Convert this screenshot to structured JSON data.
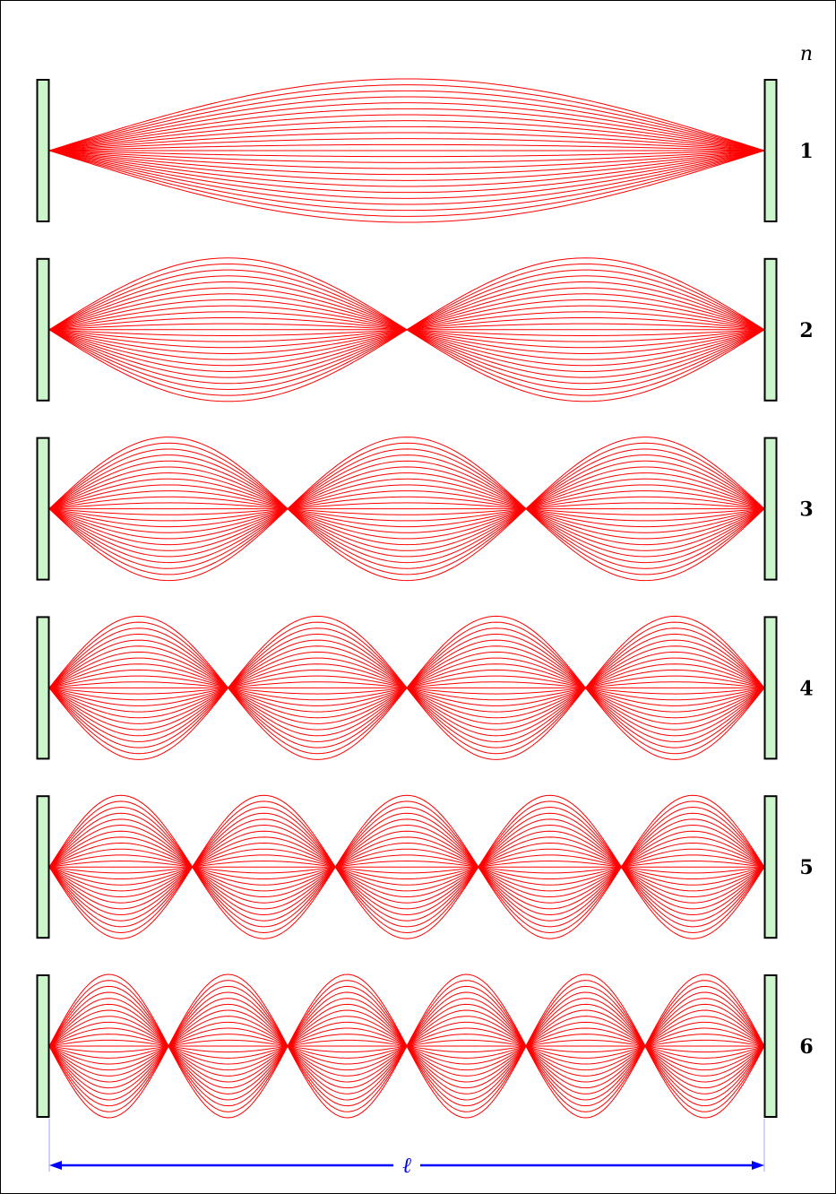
{
  "header": {
    "n_symbol": "n"
  },
  "modes": [
    {
      "n": 1,
      "label": "1"
    },
    {
      "n": 2,
      "label": "2"
    },
    {
      "n": 3,
      "label": "3"
    },
    {
      "n": 4,
      "label": "4"
    },
    {
      "n": 5,
      "label": "5"
    },
    {
      "n": 6,
      "label": "6"
    }
  ],
  "length_label": "ℓ",
  "curves_per_half": 12,
  "colors": {
    "string": "#ff0000",
    "support_fill": "#ccf5cc",
    "support_stroke": "#000000",
    "dimension": "#0000ff",
    "extension": "#a0a0ff"
  }
}
